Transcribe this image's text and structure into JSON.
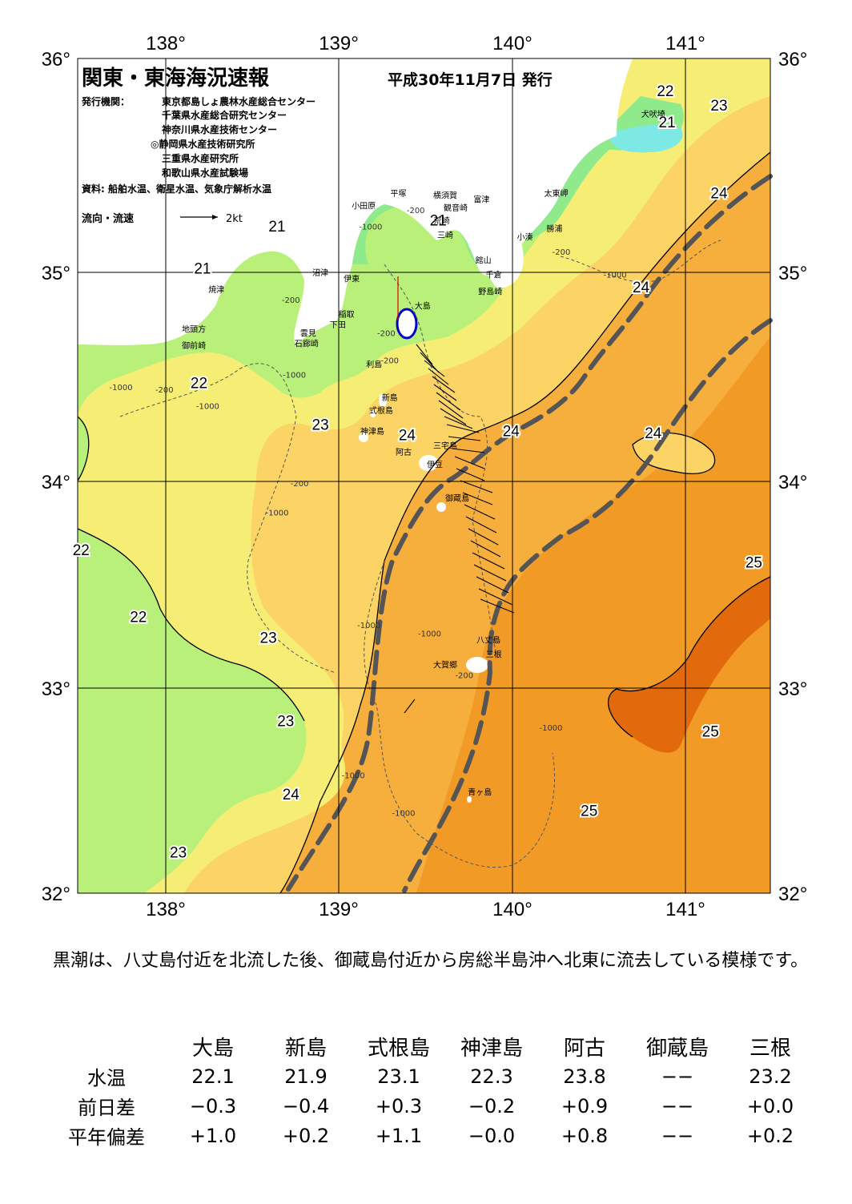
{
  "header": {
    "title": "関東・東海海況速報",
    "issue_date": "平成30年11月7日 発行",
    "publisher_label": "発行機関：",
    "publishers": [
      "東京都島しょ農林水産総合センター",
      "千葉県水産総合研究センター",
      "神奈川県水産技術センター",
      "◎静岡県水産技術研究所",
      "三重県水産研究所",
      "和歌山県水産試験場"
    ],
    "source": "資料: 船舶水温、衛星水温、気象庁解析水温",
    "legend_label": "流向・流速",
    "legend_scale": "2kt"
  },
  "map": {
    "lon_labels": [
      "138°",
      "139°",
      "140°",
      "141°"
    ],
    "lat_labels": [
      "36°",
      "35°",
      "34°",
      "33°",
      "32°"
    ],
    "isotherm_labels": [
      {
        "t": "22",
        "lon": 140.89,
        "lat": 35.82
      },
      {
        "t": "23",
        "lon": 141.2,
        "lat": 35.75
      },
      {
        "t": "21",
        "lon": 140.9,
        "lat": 35.67
      },
      {
        "t": "24",
        "lon": 141.2,
        "lat": 35.33
      },
      {
        "t": "21",
        "lon": 138.65,
        "lat": 35.17
      },
      {
        "t": "21",
        "lon": 139.58,
        "lat": 35.2
      },
      {
        "t": "21",
        "lon": 138.22,
        "lat": 34.97
      },
      {
        "t": "24",
        "lon": 140.75,
        "lat": 34.88
      },
      {
        "t": "22",
        "lon": 138.2,
        "lat": 34.42
      },
      {
        "t": "23",
        "lon": 138.9,
        "lat": 34.22
      },
      {
        "t": "24",
        "lon": 139.4,
        "lat": 34.17
      },
      {
        "t": "24",
        "lon": 140.0,
        "lat": 34.19
      },
      {
        "t": "24",
        "lon": 140.82,
        "lat": 34.18
      },
      {
        "t": "22",
        "lon": 137.52,
        "lat": 33.62
      },
      {
        "t": "25",
        "lon": 141.4,
        "lat": 33.56
      },
      {
        "t": "22",
        "lon": 137.85,
        "lat": 33.3
      },
      {
        "t": "23",
        "lon": 138.6,
        "lat": 33.2
      },
      {
        "t": "23",
        "lon": 138.7,
        "lat": 32.8
      },
      {
        "t": "25",
        "lon": 141.15,
        "lat": 32.75
      },
      {
        "t": "24",
        "lon": 138.73,
        "lat": 32.45
      },
      {
        "t": "25",
        "lon": 140.45,
        "lat": 32.37
      },
      {
        "t": "23",
        "lon": 138.08,
        "lat": 32.17
      }
    ],
    "place_names": [
      {
        "t": "犬吠埼",
        "lon": 140.82,
        "lat": 35.72
      },
      {
        "t": "富津",
        "lon": 139.83,
        "lat": 35.31
      },
      {
        "t": "太東岬",
        "lon": 140.26,
        "lat": 35.34
      },
      {
        "t": "横須賀",
        "lon": 139.62,
        "lat": 35.33
      },
      {
        "t": "平塚",
        "lon": 139.35,
        "lat": 35.34
      },
      {
        "t": "観音崎",
        "lon": 139.68,
        "lat": 35.27
      },
      {
        "t": "小田原",
        "lon": 139.15,
        "lat": 35.28
      },
      {
        "t": "荒崎",
        "lon": 139.6,
        "lat": 35.21
      },
      {
        "t": "勝浦",
        "lon": 140.25,
        "lat": 35.17
      },
      {
        "t": "小湊",
        "lon": 140.08,
        "lat": 35.13
      },
      {
        "t": "三崎",
        "lon": 139.62,
        "lat": 35.14
      },
      {
        "t": "館山",
        "lon": 139.84,
        "lat": 35.02
      },
      {
        "t": "沼津",
        "lon": 138.9,
        "lat": 34.96
      },
      {
        "t": "千倉",
        "lon": 139.9,
        "lat": 34.95
      },
      {
        "t": "伊東",
        "lon": 139.08,
        "lat": 34.93
      },
      {
        "t": "焼津",
        "lon": 138.3,
        "lat": 34.88
      },
      {
        "t": "野島崎",
        "lon": 139.88,
        "lat": 34.87
      },
      {
        "t": "大島",
        "lon": 139.49,
        "lat": 34.8
      },
      {
        "t": "稲取",
        "lon": 139.05,
        "lat": 34.76
      },
      {
        "t": "下田",
        "lon": 139.0,
        "lat": 34.71
      },
      {
        "t": "雲見",
        "lon": 138.83,
        "lat": 34.67
      },
      {
        "t": "地頭方",
        "lon": 138.17,
        "lat": 34.69
      },
      {
        "t": "石廊崎",
        "lon": 138.82,
        "lat": 34.62
      },
      {
        "t": "御前崎",
        "lon": 138.17,
        "lat": 34.61
      },
      {
        "t": "利島",
        "lon": 139.21,
        "lat": 34.52
      },
      {
        "t": "新島",
        "lon": 139.3,
        "lat": 34.36
      },
      {
        "t": "式根島",
        "lon": 139.25,
        "lat": 34.3
      },
      {
        "t": "神津島",
        "lon": 139.2,
        "lat": 34.2
      },
      {
        "t": "三宅島",
        "lon": 139.62,
        "lat": 34.13
      },
      {
        "t": "阿古",
        "lon": 139.38,
        "lat": 34.1
      },
      {
        "t": "伊豆",
        "lon": 139.56,
        "lat": 34.04
      },
      {
        "t": "御蔵島",
        "lon": 139.69,
        "lat": 33.88
      },
      {
        "t": "八丈島",
        "lon": 139.87,
        "lat": 33.2
      },
      {
        "t": "三根",
        "lon": 139.9,
        "lat": 33.13
      },
      {
        "t": "大賀郷",
        "lon": 139.62,
        "lat": 33.08
      },
      {
        "t": "青ヶ島",
        "lon": 139.82,
        "lat": 32.47
      }
    ],
    "depth_labels": [
      {
        "t": "-200",
        "lon": 139.45,
        "lat": 35.26
      },
      {
        "t": "-1000",
        "lon": 139.19,
        "lat": 35.18
      },
      {
        "t": "-200",
        "lon": 140.29,
        "lat": 35.06
      },
      {
        "t": "-1000",
        "lon": 140.6,
        "lat": 34.95
      },
      {
        "t": "-200",
        "lon": 138.73,
        "lat": 34.83
      },
      {
        "t": "-200",
        "lon": 139.28,
        "lat": 34.67
      },
      {
        "t": "-200",
        "lon": 139.3,
        "lat": 34.54
      },
      {
        "t": "-1000",
        "lon": 138.75,
        "lat": 34.47
      },
      {
        "t": "-1000",
        "lon": 137.75,
        "lat": 34.41
      },
      {
        "t": "-200",
        "lon": 138.0,
        "lat": 34.4
      },
      {
        "t": "-1000",
        "lon": 138.25,
        "lat": 34.32
      },
      {
        "t": "-200",
        "lon": 138.78,
        "lat": 33.95
      },
      {
        "t": "-1000",
        "lon": 138.65,
        "lat": 33.81
      },
      {
        "t": "-1000",
        "lon": 139.18,
        "lat": 33.27
      },
      {
        "t": "-1000",
        "lon": 139.53,
        "lat": 33.23
      },
      {
        "t": "-200",
        "lon": 139.73,
        "lat": 33.03
      },
      {
        "t": "-1000",
        "lon": 140.23,
        "lat": 32.78
      },
      {
        "t": "-1000",
        "lon": 139.09,
        "lat": 32.55
      },
      {
        "t": "-1000",
        "lon": 139.38,
        "lat": 32.37
      }
    ]
  },
  "summary": "黒潮は、八丈島付近を北流した後、御蔵島付近から房総半島沖へ北東に流去している模様です。",
  "table": {
    "stations": [
      "大島",
      "新島",
      "式根島",
      "神津島",
      "阿古",
      "御蔵島",
      "三根"
    ],
    "rows": [
      {
        "label": "水温",
        "values": [
          "22.1",
          "21.9",
          "23.1",
          "22.3",
          "23.8",
          "−−",
          "23.2"
        ]
      },
      {
        "label": "前日差",
        "values": [
          "−0.3",
          "−0.4",
          "+0.3",
          "−0.2",
          "+0.9",
          "−−",
          "+0.0"
        ]
      },
      {
        "label": "平年偏差",
        "values": [
          "+1.0",
          "+0.2",
          "+1.1",
          "−0.0",
          "+0.8",
          "−−",
          "+0.2"
        ]
      }
    ]
  },
  "colors": {
    "t21": "#8fea8c",
    "t22": "#b8f07a",
    "t23": "#f6ee74",
    "t24": "#fbd465",
    "t24b": "#f6ae3c",
    "t25": "#f29a26",
    "t26": "#e26a0c",
    "cold": "#7ee8e4",
    "kuroshio": "#555555",
    "grid": "#000000",
    "land": "#ffffff"
  }
}
